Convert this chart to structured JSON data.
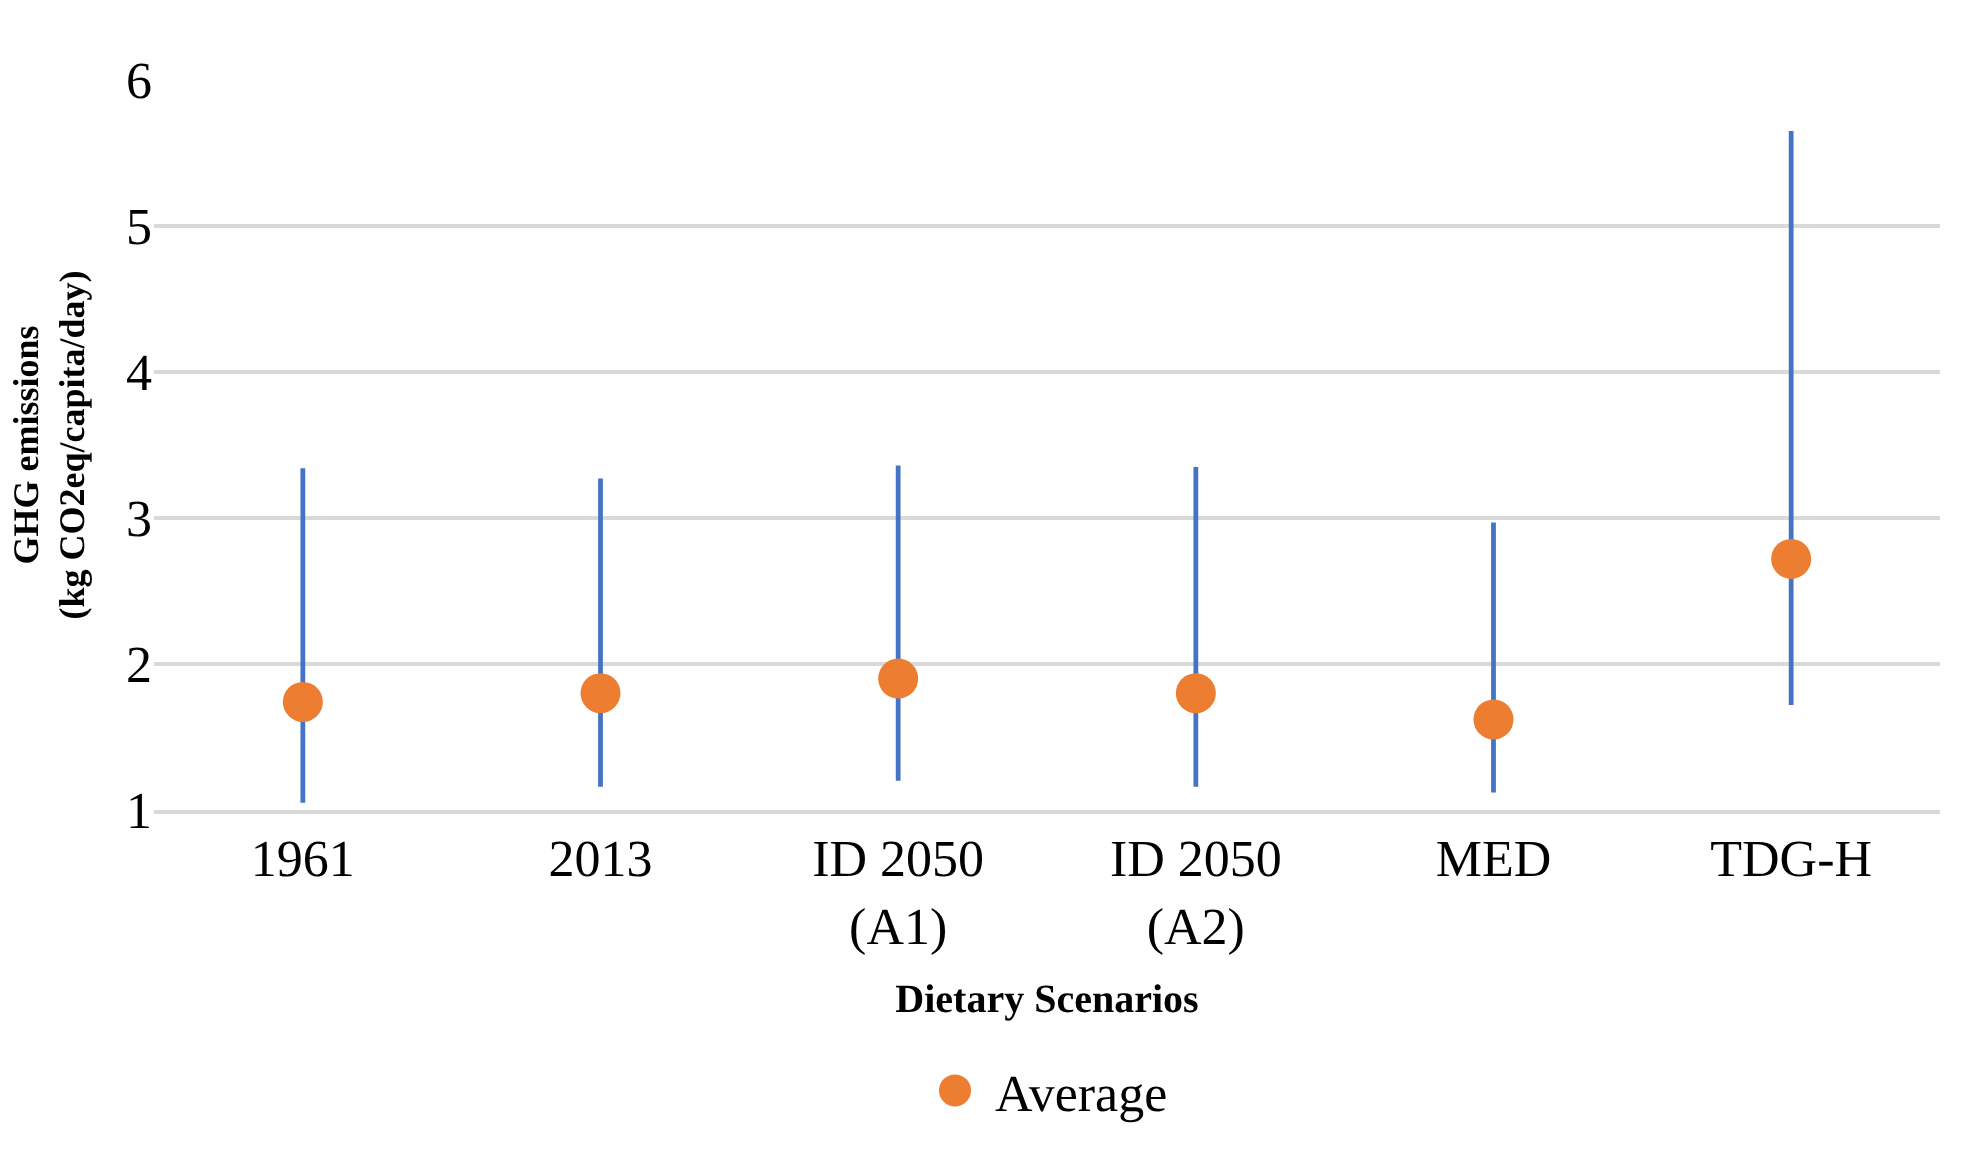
{
  "chart_data": {
    "type": "bar",
    "xlabel": "Dietary Scenarios",
    "ylabel": "GHG emissions\n(kg CO2eq/capita/day)",
    "categories": [
      "1961",
      "2013",
      "ID 2050 (A1)",
      "ID 2050 (A2)",
      "MED",
      "TDG-H"
    ],
    "series": [
      {
        "color": "#4472c4",
        "base": [
          1.05,
          1.16,
          1.2,
          1.16,
          1.12,
          1.72
        ],
        "values": [
          2.29,
          2.11,
          2.16,
          2.19,
          1.85,
          3.93
        ]
      },
      {
        "type": "scatter",
        "name": "Average",
        "color": "#ed7d31",
        "values": [
          1.74,
          1.8,
          1.9,
          1.8,
          1.62,
          2.72
        ]
      }
    ],
    "ylim": [
      1,
      6
    ],
    "yticks": [
      1,
      2,
      3,
      4,
      5,
      6
    ],
    "grid": "y",
    "legend": "bottom",
    "marker": "circle"
  }
}
